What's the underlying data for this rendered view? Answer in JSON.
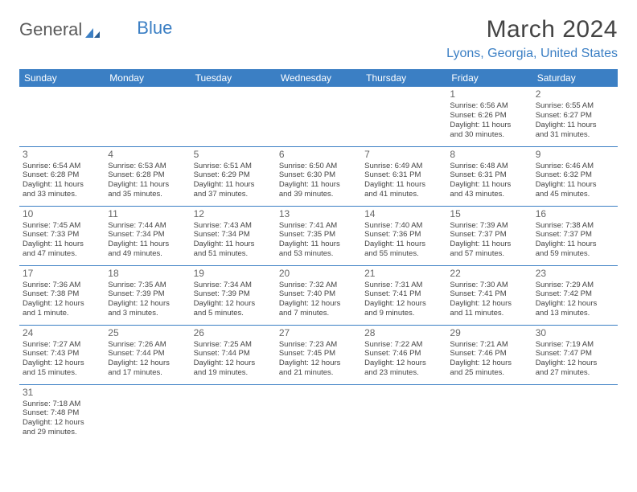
{
  "logo": {
    "text1": "General",
    "text2": "Blue"
  },
  "title": "March 2024",
  "subtitle": "Lyons, Georgia, United States",
  "colors": {
    "accent": "#3b7fc4",
    "text": "#444444",
    "muted": "#666666",
    "bg": "#ffffff"
  },
  "weekdays": [
    "Sunday",
    "Monday",
    "Tuesday",
    "Wednesday",
    "Thursday",
    "Friday",
    "Saturday"
  ],
  "weeks": [
    [
      null,
      null,
      null,
      null,
      null,
      {
        "n": "1",
        "sr": "Sunrise: 6:56 AM",
        "ss": "Sunset: 6:26 PM",
        "d1": "Daylight: 11 hours",
        "d2": "and 30 minutes."
      },
      {
        "n": "2",
        "sr": "Sunrise: 6:55 AM",
        "ss": "Sunset: 6:27 PM",
        "d1": "Daylight: 11 hours",
        "d2": "and 31 minutes."
      }
    ],
    [
      {
        "n": "3",
        "sr": "Sunrise: 6:54 AM",
        "ss": "Sunset: 6:28 PM",
        "d1": "Daylight: 11 hours",
        "d2": "and 33 minutes."
      },
      {
        "n": "4",
        "sr": "Sunrise: 6:53 AM",
        "ss": "Sunset: 6:28 PM",
        "d1": "Daylight: 11 hours",
        "d2": "and 35 minutes."
      },
      {
        "n": "5",
        "sr": "Sunrise: 6:51 AM",
        "ss": "Sunset: 6:29 PM",
        "d1": "Daylight: 11 hours",
        "d2": "and 37 minutes."
      },
      {
        "n": "6",
        "sr": "Sunrise: 6:50 AM",
        "ss": "Sunset: 6:30 PM",
        "d1": "Daylight: 11 hours",
        "d2": "and 39 minutes."
      },
      {
        "n": "7",
        "sr": "Sunrise: 6:49 AM",
        "ss": "Sunset: 6:31 PM",
        "d1": "Daylight: 11 hours",
        "d2": "and 41 minutes."
      },
      {
        "n": "8",
        "sr": "Sunrise: 6:48 AM",
        "ss": "Sunset: 6:31 PM",
        "d1": "Daylight: 11 hours",
        "d2": "and 43 minutes."
      },
      {
        "n": "9",
        "sr": "Sunrise: 6:46 AM",
        "ss": "Sunset: 6:32 PM",
        "d1": "Daylight: 11 hours",
        "d2": "and 45 minutes."
      }
    ],
    [
      {
        "n": "10",
        "sr": "Sunrise: 7:45 AM",
        "ss": "Sunset: 7:33 PM",
        "d1": "Daylight: 11 hours",
        "d2": "and 47 minutes."
      },
      {
        "n": "11",
        "sr": "Sunrise: 7:44 AM",
        "ss": "Sunset: 7:34 PM",
        "d1": "Daylight: 11 hours",
        "d2": "and 49 minutes."
      },
      {
        "n": "12",
        "sr": "Sunrise: 7:43 AM",
        "ss": "Sunset: 7:34 PM",
        "d1": "Daylight: 11 hours",
        "d2": "and 51 minutes."
      },
      {
        "n": "13",
        "sr": "Sunrise: 7:41 AM",
        "ss": "Sunset: 7:35 PM",
        "d1": "Daylight: 11 hours",
        "d2": "and 53 minutes."
      },
      {
        "n": "14",
        "sr": "Sunrise: 7:40 AM",
        "ss": "Sunset: 7:36 PM",
        "d1": "Daylight: 11 hours",
        "d2": "and 55 minutes."
      },
      {
        "n": "15",
        "sr": "Sunrise: 7:39 AM",
        "ss": "Sunset: 7:37 PM",
        "d1": "Daylight: 11 hours",
        "d2": "and 57 minutes."
      },
      {
        "n": "16",
        "sr": "Sunrise: 7:38 AM",
        "ss": "Sunset: 7:37 PM",
        "d1": "Daylight: 11 hours",
        "d2": "and 59 minutes."
      }
    ],
    [
      {
        "n": "17",
        "sr": "Sunrise: 7:36 AM",
        "ss": "Sunset: 7:38 PM",
        "d1": "Daylight: 12 hours",
        "d2": "and 1 minute."
      },
      {
        "n": "18",
        "sr": "Sunrise: 7:35 AM",
        "ss": "Sunset: 7:39 PM",
        "d1": "Daylight: 12 hours",
        "d2": "and 3 minutes."
      },
      {
        "n": "19",
        "sr": "Sunrise: 7:34 AM",
        "ss": "Sunset: 7:39 PM",
        "d1": "Daylight: 12 hours",
        "d2": "and 5 minutes."
      },
      {
        "n": "20",
        "sr": "Sunrise: 7:32 AM",
        "ss": "Sunset: 7:40 PM",
        "d1": "Daylight: 12 hours",
        "d2": "and 7 minutes."
      },
      {
        "n": "21",
        "sr": "Sunrise: 7:31 AM",
        "ss": "Sunset: 7:41 PM",
        "d1": "Daylight: 12 hours",
        "d2": "and 9 minutes."
      },
      {
        "n": "22",
        "sr": "Sunrise: 7:30 AM",
        "ss": "Sunset: 7:41 PM",
        "d1": "Daylight: 12 hours",
        "d2": "and 11 minutes."
      },
      {
        "n": "23",
        "sr": "Sunrise: 7:29 AM",
        "ss": "Sunset: 7:42 PM",
        "d1": "Daylight: 12 hours",
        "d2": "and 13 minutes."
      }
    ],
    [
      {
        "n": "24",
        "sr": "Sunrise: 7:27 AM",
        "ss": "Sunset: 7:43 PM",
        "d1": "Daylight: 12 hours",
        "d2": "and 15 minutes."
      },
      {
        "n": "25",
        "sr": "Sunrise: 7:26 AM",
        "ss": "Sunset: 7:44 PM",
        "d1": "Daylight: 12 hours",
        "d2": "and 17 minutes."
      },
      {
        "n": "26",
        "sr": "Sunrise: 7:25 AM",
        "ss": "Sunset: 7:44 PM",
        "d1": "Daylight: 12 hours",
        "d2": "and 19 minutes."
      },
      {
        "n": "27",
        "sr": "Sunrise: 7:23 AM",
        "ss": "Sunset: 7:45 PM",
        "d1": "Daylight: 12 hours",
        "d2": "and 21 minutes."
      },
      {
        "n": "28",
        "sr": "Sunrise: 7:22 AM",
        "ss": "Sunset: 7:46 PM",
        "d1": "Daylight: 12 hours",
        "d2": "and 23 minutes."
      },
      {
        "n": "29",
        "sr": "Sunrise: 7:21 AM",
        "ss": "Sunset: 7:46 PM",
        "d1": "Daylight: 12 hours",
        "d2": "and 25 minutes."
      },
      {
        "n": "30",
        "sr": "Sunrise: 7:19 AM",
        "ss": "Sunset: 7:47 PM",
        "d1": "Daylight: 12 hours",
        "d2": "and 27 minutes."
      }
    ],
    [
      {
        "n": "31",
        "sr": "Sunrise: 7:18 AM",
        "ss": "Sunset: 7:48 PM",
        "d1": "Daylight: 12 hours",
        "d2": "and 29 minutes."
      },
      null,
      null,
      null,
      null,
      null,
      null
    ]
  ]
}
